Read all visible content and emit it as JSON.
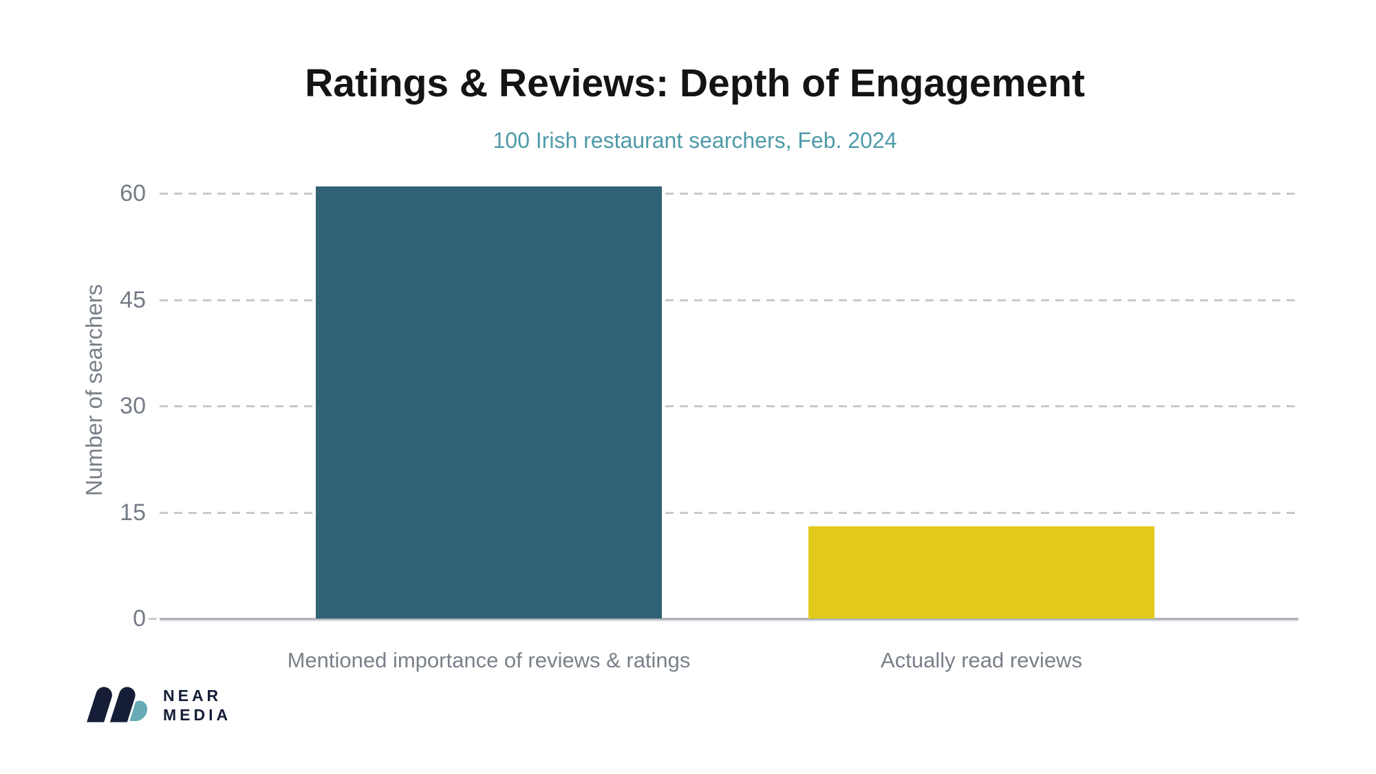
{
  "chart_data": {
    "type": "bar",
    "title": "Ratings & Reviews: Depth of Engagement",
    "subtitle": "100 Irish restaurant searchers, Feb. 2024",
    "ylabel": "Number of searchers",
    "xlabel": "",
    "categories": [
      "Mentioned importance of reviews & ratings",
      "Actually read reviews"
    ],
    "values": [
      61,
      13
    ],
    "bar_colors": [
      "#316276",
      "#e2ca1b"
    ],
    "yticks": [
      0,
      15,
      30,
      45,
      60
    ],
    "ylim": [
      0,
      64
    ],
    "grid": "horizontal-dashed",
    "legend_position": "none"
  },
  "branding": {
    "name_line1": "NEAR",
    "name_line2": "MEDIA",
    "logo_navy": "#151e36",
    "logo_teal": "#68abb4"
  },
  "colors": {
    "background": "#ffffff",
    "title_text": "#141414",
    "subtitle_text": "#4e9aa8",
    "axis_text": "#7a8089",
    "tick_text": "#757b86",
    "gridline": "#c6c9cf",
    "baseline": "#aeb2b8"
  }
}
